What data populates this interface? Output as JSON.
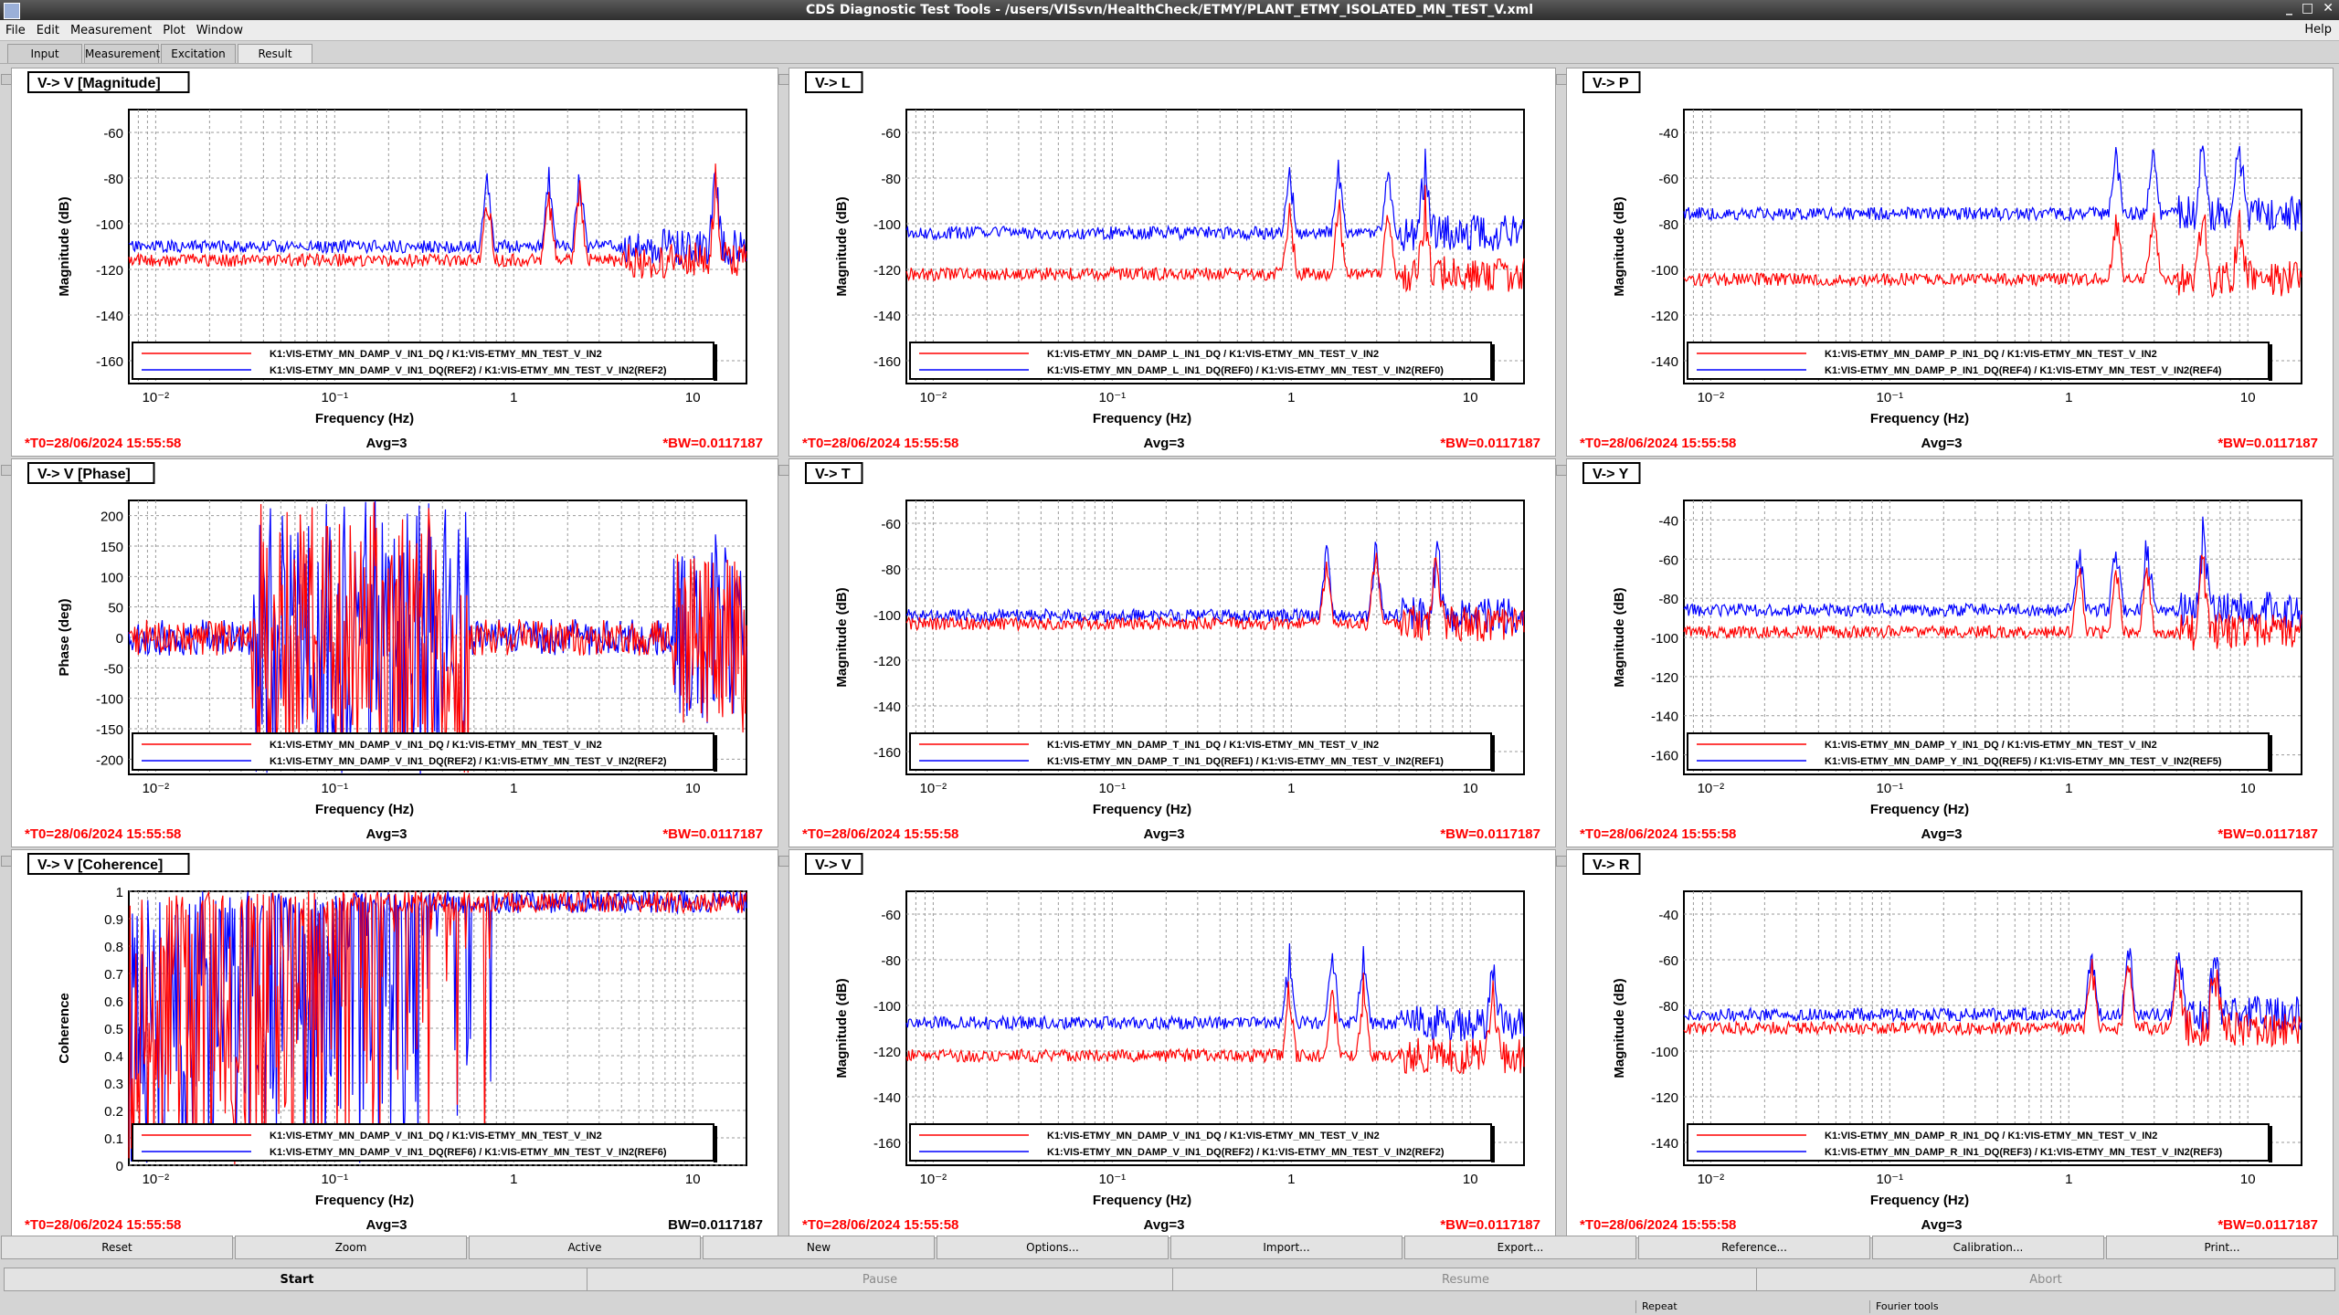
{
  "window": {
    "title": "CDS Diagnostic Test Tools - /users/VISsvn/HealthCheck/ETMY/PLANT_ETMY_ISOLATED_MN_TEST_V.xml",
    "minimize": "_",
    "maximize": "□",
    "close": "✕"
  },
  "menu": {
    "items": [
      "File",
      "Edit",
      "Measurement",
      "Plot",
      "Window"
    ],
    "help": "Help"
  },
  "tabs": [
    "Input",
    "Measurement",
    "Excitation",
    "Result"
  ],
  "active_tab": "Result",
  "colors": {
    "measurement": "#ff0000",
    "reference": "#0000ff"
  },
  "panels": [
    {
      "title": "V-> V [Magnitude]",
      "ylabel": "Magnitude (dB)",
      "xlabel": "Frequency (Hz)",
      "yticks": [
        "-60",
        "-80",
        "-100",
        "-120",
        "-140",
        "-160"
      ],
      "xticks": [
        "10⁻²",
        "10⁻¹",
        "1",
        "10"
      ],
      "legend": [
        "K1:VIS-ETMY_MN_DAMP_V_IN1_DQ / K1:VIS-ETMY_MN_TEST_V_IN2",
        "K1:VIS-ETMY_MN_DAMP_V_IN1_DQ(REF2) / K1:VIS-ETMY_MN_TEST_V_IN2(REF2)"
      ],
      "t0": "*T0=28/06/2024 15:55:58",
      "avg": "Avg=3",
      "bw": "*BW=0.0117187"
    },
    {
      "title": "V-> L",
      "ylabel": "Magnitude (dB)",
      "xlabel": "Frequency (Hz)",
      "yticks": [
        "-60",
        "-80",
        "-100",
        "-120",
        "-140",
        "-160"
      ],
      "xticks": [
        "10⁻²",
        "10⁻¹",
        "1",
        "10"
      ],
      "legend": [
        "K1:VIS-ETMY_MN_DAMP_L_IN1_DQ / K1:VIS-ETMY_MN_TEST_V_IN2",
        "K1:VIS-ETMY_MN_DAMP_L_IN1_DQ(REF0) / K1:VIS-ETMY_MN_TEST_V_IN2(REF0)"
      ],
      "t0": "*T0=28/06/2024 15:55:58",
      "avg": "Avg=3",
      "bw": "*BW=0.0117187"
    },
    {
      "title": "V-> P",
      "ylabel": "Magnitude (dB)",
      "xlabel": "Frequency (Hz)",
      "yticks": [
        "-40",
        "-60",
        "-80",
        "-100",
        "-120",
        "-140"
      ],
      "xticks": [
        "10⁻²",
        "10⁻¹",
        "1",
        "10"
      ],
      "legend": [
        "K1:VIS-ETMY_MN_DAMP_P_IN1_DQ / K1:VIS-ETMY_MN_TEST_V_IN2",
        "K1:VIS-ETMY_MN_DAMP_P_IN1_DQ(REF4) / K1:VIS-ETMY_MN_TEST_V_IN2(REF4)"
      ],
      "t0": "*T0=28/06/2024 15:55:58",
      "avg": "Avg=3",
      "bw": "*BW=0.0117187"
    },
    {
      "title": "V-> V [Phase]",
      "ylabel": "Phase (deg)",
      "xlabel": "Frequency (Hz)",
      "yticks": [
        "200",
        "150",
        "100",
        "50",
        "0",
        "-50",
        "-100",
        "-150",
        "-200"
      ],
      "xticks": [
        "10⁻²",
        "10⁻¹",
        "1",
        "10"
      ],
      "legend": [
        "K1:VIS-ETMY_MN_DAMP_V_IN1_DQ / K1:VIS-ETMY_MN_TEST_V_IN2",
        "K1:VIS-ETMY_MN_DAMP_V_IN1_DQ(REF2) / K1:VIS-ETMY_MN_TEST_V_IN2(REF2)"
      ],
      "t0": "*T0=28/06/2024 15:55:58",
      "avg": "Avg=3",
      "bw": "*BW=0.0117187"
    },
    {
      "title": "V-> T",
      "ylabel": "Magnitude (dB)",
      "xlabel": "Frequency (Hz)",
      "yticks": [
        "-60",
        "-80",
        "-100",
        "-120",
        "-140",
        "-160"
      ],
      "xticks": [
        "10⁻²",
        "10⁻¹",
        "1",
        "10"
      ],
      "legend": [
        "K1:VIS-ETMY_MN_DAMP_T_IN1_DQ / K1:VIS-ETMY_MN_TEST_V_IN2",
        "K1:VIS-ETMY_MN_DAMP_T_IN1_DQ(REF1) / K1:VIS-ETMY_MN_TEST_V_IN2(REF1)"
      ],
      "t0": "*T0=28/06/2024 15:55:58",
      "avg": "Avg=3",
      "bw": "*BW=0.0117187"
    },
    {
      "title": "V-> Y",
      "ylabel": "Magnitude (dB)",
      "xlabel": "Frequency (Hz)",
      "yticks": [
        "-40",
        "-60",
        "-80",
        "-100",
        "-120",
        "-140",
        "-160"
      ],
      "xticks": [
        "10⁻²",
        "10⁻¹",
        "1",
        "10"
      ],
      "legend": [
        "K1:VIS-ETMY_MN_DAMP_Y_IN1_DQ / K1:VIS-ETMY_MN_TEST_V_IN2",
        "K1:VIS-ETMY_MN_DAMP_Y_IN1_DQ(REF5) / K1:VIS-ETMY_MN_TEST_V_IN2(REF5)"
      ],
      "t0": "*T0=28/06/2024 15:55:58",
      "avg": "Avg=3",
      "bw": "*BW=0.0117187"
    },
    {
      "title": "V-> V [Coherence]",
      "ylabel": "Coherence",
      "xlabel": "Frequency (Hz)",
      "yticks": [
        "1",
        "0.9",
        "0.8",
        "0.7",
        "0.6",
        "0.5",
        "0.4",
        "0.3",
        "0.2",
        "0.1",
        "0"
      ],
      "xticks": [
        "10⁻²",
        "10⁻¹",
        "1",
        "10"
      ],
      "legend": [
        "K1:VIS-ETMY_MN_DAMP_V_IN1_DQ / K1:VIS-ETMY_MN_TEST_V_IN2",
        "K1:VIS-ETMY_MN_DAMP_V_IN1_DQ(REF6) / K1:VIS-ETMY_MN_TEST_V_IN2(REF6)"
      ],
      "t0": "*T0=28/06/2024 15:55:58",
      "avg": "Avg=3",
      "bw": "BW=0.0117187"
    },
    {
      "title": "V-> V",
      "ylabel": "Magnitude (dB)",
      "xlabel": "Frequency (Hz)",
      "yticks": [
        "-60",
        "-80",
        "-100",
        "-120",
        "-140",
        "-160"
      ],
      "xticks": [
        "10⁻²",
        "10⁻¹",
        "1",
        "10"
      ],
      "legend": [
        "K1:VIS-ETMY_MN_DAMP_V_IN1_DQ / K1:VIS-ETMY_MN_TEST_V_IN2",
        "K1:VIS-ETMY_MN_DAMP_V_IN1_DQ(REF2) / K1:VIS-ETMY_MN_TEST_V_IN2(REF2)"
      ],
      "t0": "*T0=28/06/2024 15:55:58",
      "avg": "Avg=3",
      "bw": "*BW=0.0117187"
    },
    {
      "title": "V-> R",
      "ylabel": "Magnitude (dB)",
      "xlabel": "Frequency (Hz)",
      "yticks": [
        "-40",
        "-60",
        "-80",
        "-100",
        "-120",
        "-140"
      ],
      "xticks": [
        "10⁻²",
        "10⁻¹",
        "1",
        "10"
      ],
      "legend": [
        "K1:VIS-ETMY_MN_DAMP_R_IN1_DQ / K1:VIS-ETMY_MN_TEST_V_IN2",
        "K1:VIS-ETMY_MN_DAMP_R_IN1_DQ(REF3) / K1:VIS-ETMY_MN_TEST_V_IN2(REF3)"
      ],
      "t0": "*T0=28/06/2024 15:55:58",
      "avg": "Avg=3",
      "bw": "*BW=0.0117187"
    }
  ],
  "buttons_row1": [
    "Reset",
    "Zoom",
    "Active",
    "New",
    "Options...",
    "Import...",
    "Export...",
    "Reference...",
    "Calibration...",
    "Print..."
  ],
  "buttons_row2": [
    {
      "label": "Start",
      "enabled": true
    },
    {
      "label": "Pause",
      "enabled": false
    },
    {
      "label": "Resume",
      "enabled": false
    },
    {
      "label": "Abort",
      "enabled": false
    }
  ],
  "status": {
    "repeat": "Repeat",
    "fourier": "Fourier tools"
  }
}
